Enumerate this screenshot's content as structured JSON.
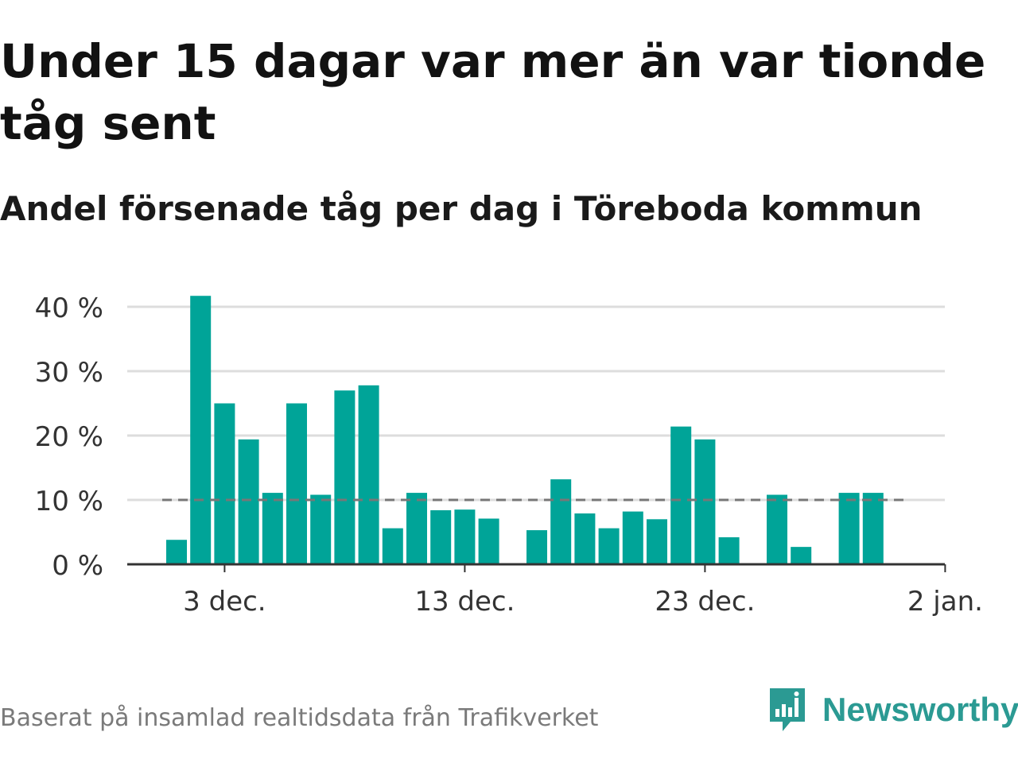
{
  "title": "Under 15 dagar var mer än var tionde tåg sent",
  "subtitle": "Andel försenade tåg per dag i Töreboda kommun",
  "footnote": "Baserat på insamlad realtidsdata från Trafikverket",
  "brand": {
    "name": "Newsworthy",
    "icon": "newsworthy-logo-icon"
  },
  "colors": {
    "bar": "#00a498",
    "grid": "#dddddd",
    "axis": "#333333",
    "reference": "#777777",
    "brand": "#2b9a93"
  },
  "chart_data": {
    "type": "bar",
    "x": [
      "2023-12-01",
      "2023-12-02",
      "2023-12-03",
      "2023-12-04",
      "2023-12-05",
      "2023-12-06",
      "2023-12-07",
      "2023-12-08",
      "2023-12-09",
      "2023-12-10",
      "2023-12-11",
      "2023-12-12",
      "2023-12-13",
      "2023-12-14",
      "2023-12-15",
      "2023-12-16",
      "2023-12-17",
      "2023-12-18",
      "2023-12-19",
      "2023-12-20",
      "2023-12-21",
      "2023-12-22",
      "2023-12-23",
      "2023-12-24",
      "2023-12-25",
      "2023-12-26",
      "2023-12-27",
      "2023-12-28",
      "2023-12-29",
      "2023-12-30",
      "2023-12-31"
    ],
    "values": [
      3.8,
      41.7,
      25.0,
      19.4,
      11.1,
      25.0,
      10.8,
      27.0,
      27.8,
      5.6,
      11.1,
      8.4,
      8.5,
      7.1,
      null,
      5.3,
      13.2,
      7.9,
      5.6,
      8.2,
      7.0,
      21.4,
      19.4,
      4.2,
      null,
      10.8,
      2.7,
      null,
      11.1,
      11.1,
      null
    ],
    "ylim": [
      0,
      42
    ],
    "yticks": [
      0,
      10,
      20,
      30,
      40
    ],
    "ytick_labels": [
      "0 %",
      "10 %",
      "20 %",
      "30 %",
      "40 %"
    ],
    "xticks": [
      "2023-12-03",
      "2023-12-13",
      "2023-12-23",
      "2024-01-02"
    ],
    "xtick_labels": [
      "3 dec.",
      "13 dec.",
      "23 dec.",
      "2 jan."
    ],
    "reference_line": {
      "value": 10,
      "style": "dashed"
    },
    "grid": true,
    "legend": false,
    "xlabel": "",
    "ylabel": ""
  }
}
